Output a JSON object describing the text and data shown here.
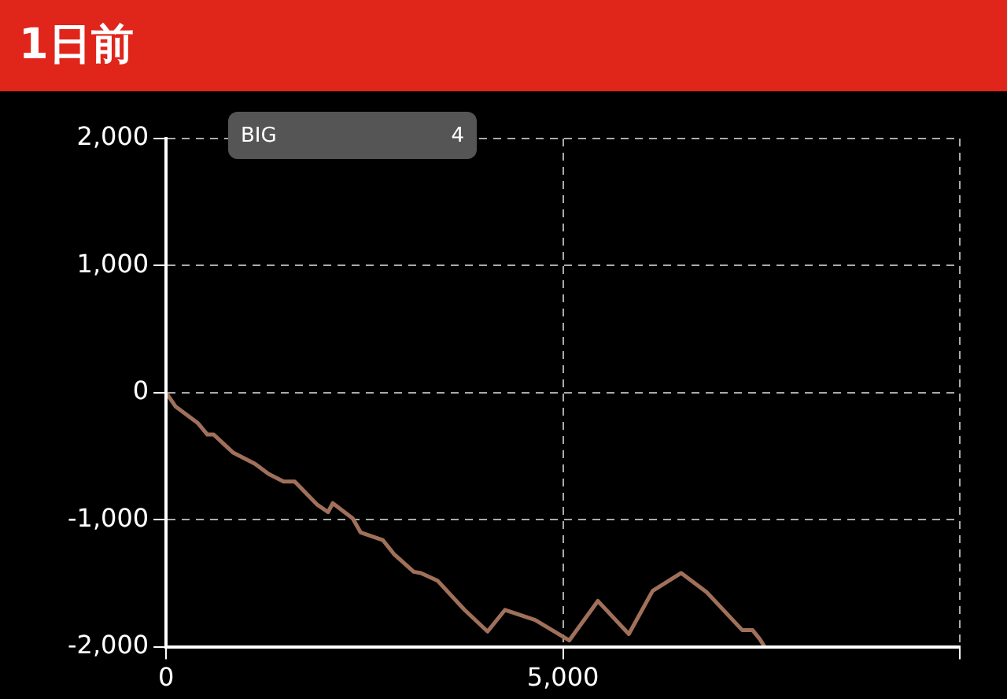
{
  "chart_data": {
    "type": "line",
    "title": "1日前",
    "annotations": [
      "BIG",
      "4"
    ],
    "x": [
      0,
      120,
      400,
      520,
      600,
      840,
      1120,
      1290,
      1480,
      1620,
      1900,
      2040,
      2100,
      2350,
      2450,
      2730,
      2870,
      3120,
      3210,
      3420,
      3760,
      4050,
      4270,
      4650,
      5080,
      5440,
      5830,
      6130,
      6490,
      6810,
      7260,
      7390,
      7480,
      7540
    ],
    "series": [
      {
        "color": "#a0705a",
        "values": [
          0,
          -110,
          -240,
          -330,
          -330,
          -470,
          -560,
          -640,
          -700,
          -700,
          -880,
          -940,
          -870,
          -990,
          -1100,
          -1160,
          -1270,
          -1410,
          -1420,
          -1480,
          -1710,
          -1880,
          -1710,
          -1790,
          -1950,
          -1640,
          -1900,
          -1560,
          -1420,
          -1570,
          -1870,
          -1870,
          -1940,
          -2000
        ]
      }
    ],
    "xlim": [
      0,
      10000
    ],
    "xticks": [
      0,
      {
        "value": 5000,
        "label": "5,000"
      },
      {
        "value": 10000,
        "label": null
      }
    ],
    "ylim": [
      -2000,
      2000
    ],
    "yticks": [
      {
        "value": -2000,
        "label": "-2,000"
      },
      {
        "value": -1000,
        "label": "-1,000"
      },
      0,
      {
        "value": 1000,
        "label": "1,000"
      },
      {
        "value": 2000,
        "label": "2,000"
      }
    ],
    "grid": true,
    "marker": "none",
    "line_style": "solid",
    "legend": false
  }
}
